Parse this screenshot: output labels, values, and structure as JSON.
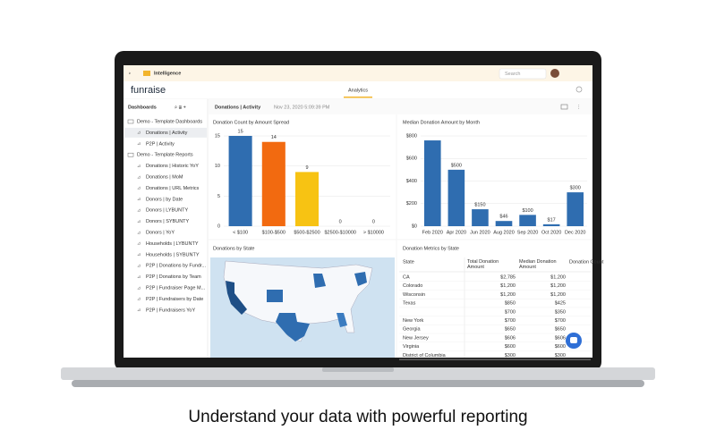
{
  "caption": "Understand your data with powerful reporting",
  "topbar": {
    "title": "Intelligence",
    "search": "Search"
  },
  "header": {
    "logo": "funraise",
    "tab": "Analytics"
  },
  "sidebar": {
    "title": "Dashboards",
    "groups": [
      {
        "title": "Demo - Template Dashboards",
        "items": [
          "Donations | Activity",
          "P2P | Activity"
        ]
      },
      {
        "title": "Demo - Template Reports",
        "items": [
          "Donations | Historic YoY",
          "Donations | MoM",
          "Donations | URL Metrics",
          "Donors | by Date",
          "Donors | LYBUNTY",
          "Donors | SYBUNTY",
          "Donors | YoY",
          "Households | LYBUNTY",
          "Households | SYBUNTY",
          "P2P | Donations by Fundr...",
          "P2P | Donations by Team",
          "P2P | Fundraiser Page M...",
          "P2P | Fundraisers by Date",
          "P2P | Fundraisers YoY"
        ]
      }
    ]
  },
  "toolbar": {
    "title": "Donations | Activity",
    "timestamp": "Nov 23, 2020 5:09:39 PM"
  },
  "chart_data": [
    {
      "type": "bar",
      "title": "Donation Count by Amount Spread",
      "categories": [
        "< $100",
        "$100-$500",
        "$500-$2500",
        "$2500-$10000",
        "> $10000"
      ],
      "values": [
        15,
        14,
        9,
        0,
        0
      ],
      "colors": [
        "#2f6db0",
        "#f26a10",
        "#f7c313",
        "#9aa0a6",
        "#9aa0a6"
      ],
      "ylim": [
        0,
        15
      ],
      "yticks": [
        0,
        5,
        10,
        15
      ],
      "grid": true
    },
    {
      "type": "bar",
      "title": "Median Donation Amount by Month",
      "categories": [
        "Feb 2020",
        "Apr 2020",
        "Jun 2020",
        "Aug 2020",
        "Sep 2020",
        "Oct 2020",
        "Dec 2020"
      ],
      "values": [
        760,
        500,
        150,
        46,
        100,
        17,
        300
      ],
      "value_labels": [
        null,
        "$500",
        "$150",
        "$46",
        "$100",
        "$17",
        "$300"
      ],
      "color": "#2f6db0",
      "ylim": [
        0,
        800
      ],
      "yticks": [
        {
          "value": 0,
          "label": "$0"
        },
        {
          "value": 200,
          "label": "$200"
        },
        {
          "value": 400,
          "label": "$400"
        },
        {
          "value": 600,
          "label": "$600"
        },
        {
          "value": 800,
          "label": "$800"
        }
      ],
      "grid": true
    }
  ],
  "map": {
    "title": "Donations by State"
  },
  "table": {
    "title": "Donation Metrics by State",
    "columns": [
      "State",
      "Total Donation Amount",
      "Median Donation Amount",
      "Donation Count"
    ],
    "rows": [
      [
        "CA",
        "$2,785",
        "$1,200"
      ],
      [
        "Colorado",
        "$1,200",
        "$1,200"
      ],
      [
        "Wisconsin",
        "$1,200",
        "$1,200"
      ],
      [
        "Texas",
        "$850",
        "$425"
      ],
      [
        null,
        "$700",
        "$350"
      ],
      [
        "New York",
        "$700",
        "$700"
      ],
      [
        "Georgia",
        "$650",
        "$650"
      ],
      [
        "New Jersey",
        "$606",
        "$606"
      ],
      [
        "Virginia",
        "$600",
        "$600"
      ],
      [
        "District of Columbia",
        "$300",
        "$300"
      ]
    ]
  }
}
